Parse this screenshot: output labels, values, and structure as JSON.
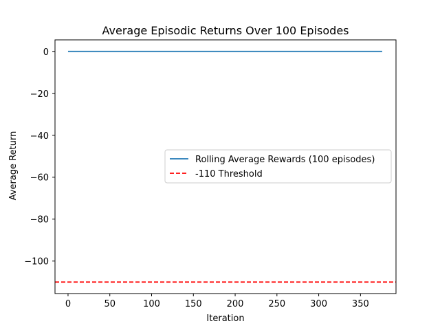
{
  "chart_data": {
    "type": "line",
    "title": "Average Episodic Returns Over 100 Episodes",
    "xlabel": "Iteration",
    "ylabel": "Average Return",
    "xlim": [
      -15.6,
      392.5
    ],
    "ylim": [
      -115.5,
      5.5
    ],
    "xticks": [
      0,
      50,
      100,
      150,
      200,
      250,
      300,
      350
    ],
    "yticks": [
      0,
      -20,
      -40,
      -60,
      -80,
      -100
    ],
    "grid": false,
    "legend_placement": "center-right",
    "series": [
      {
        "name": "Rolling Average Rewards (100 episodes)",
        "color": "#1f77b4",
        "style": "solid",
        "x": [
          0,
          50,
          100,
          150,
          200,
          250,
          300,
          350,
          376
        ],
        "y": [
          0,
          0,
          0,
          0,
          0,
          0,
          0,
          0,
          0
        ]
      },
      {
        "name": "-110 Threshold",
        "color": "#ff0000",
        "style": "dashed",
        "horizontal_line": -110
      }
    ]
  }
}
